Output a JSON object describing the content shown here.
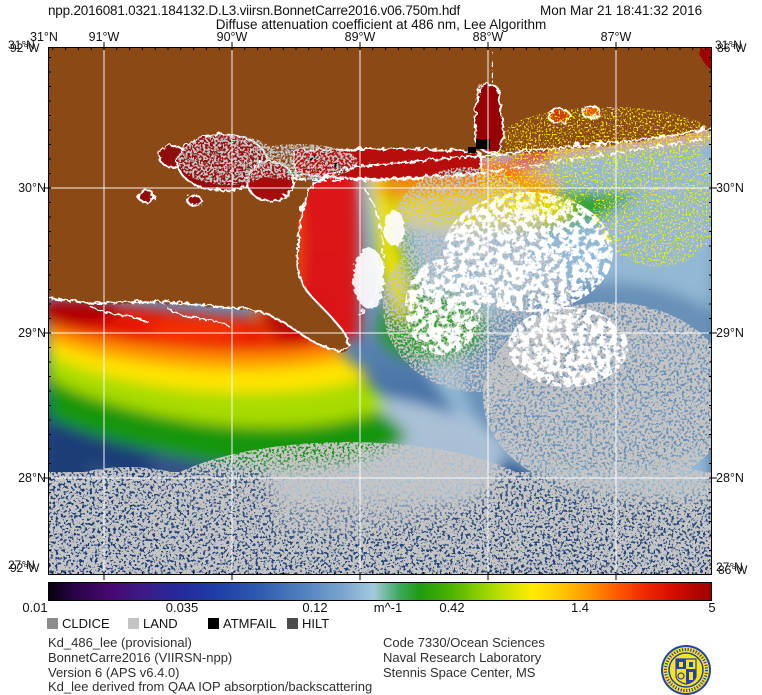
{
  "header": {
    "filename": "npp.2016081.0321.184132.D.L3.viirsn.BonnetCarre2016.v06.750m.hdf",
    "timestamp": "Mon Mar 21 18:41:32 2016",
    "subtitle": "Diffuse attenuation coefficient at 486 nm, Lee Algorithm"
  },
  "map": {
    "top_lat_label": "31°N",
    "lon_ticks": [
      "91°W",
      "90°W",
      "89°W",
      "88°W",
      "87°W"
    ],
    "lat_ticks": [
      "30°N",
      "29°N",
      "28°N"
    ],
    "corner_labels": {
      "top_left": [
        "31°N",
        "92°W"
      ],
      "top_right": [
        "31°N",
        "86°W"
      ],
      "bottom_left": [
        "27°N",
        "92°W"
      ],
      "bottom_right": [
        "27°N",
        "86°W"
      ]
    },
    "colors": {
      "land_brown": "#8b4a16",
      "lake_dark_red": "#8f0a0a",
      "cloud_gray": "#8f8f8f",
      "graticule_white": "#ffffff",
      "deep_water_navy": "#1c3a6e"
    }
  },
  "colorbar": {
    "tick_labels": [
      "0.01",
      "0.035",
      "0.12",
      "0.42",
      "1.4",
      "5"
    ],
    "unit_label": "m^-1",
    "scale": "log",
    "stops": [
      [
        0,
        "#08000f"
      ],
      [
        4,
        "#2a0448"
      ],
      [
        9,
        "#47086e"
      ],
      [
        14,
        "#3d1a86"
      ],
      [
        19,
        "#27289a"
      ],
      [
        25,
        "#1e3ca6"
      ],
      [
        32,
        "#2f5cb0"
      ],
      [
        39,
        "#5585c0"
      ],
      [
        45,
        "#7fa9d2"
      ],
      [
        49,
        "#a4c9de"
      ],
      [
        53,
        "#3aa85a"
      ],
      [
        56,
        "#1f9c10"
      ],
      [
        61,
        "#4fb400"
      ],
      [
        65,
        "#8cd000"
      ],
      [
        69,
        "#c8e200"
      ],
      [
        73,
        "#ffec00"
      ],
      [
        78,
        "#ffc000"
      ],
      [
        82,
        "#ff9000"
      ],
      [
        86,
        "#ff5800"
      ],
      [
        90,
        "#f02800"
      ],
      [
        94,
        "#d80e00"
      ],
      [
        100,
        "#9e0000"
      ]
    ]
  },
  "legend": {
    "items": [
      {
        "label": "CLDICE",
        "color": "#8c8c8c"
      },
      {
        "label": "LAND",
        "color": "#c4c4c4"
      },
      {
        "label": "ATMFAIL",
        "color": "#000000"
      },
      {
        "label": "HILT",
        "color": "#4c4c4c"
      }
    ]
  },
  "footer": {
    "product_lines": [
      "Kd_486_lee (provisional)",
      "BonnetCarre2016 (VIIRSN-npp)",
      "Version 6 (APS v6.4.0)",
      "Kd_lee derived from QAA IOP absorption/backscattering"
    ],
    "org_lines": [
      "Code 7330/Ocean Sciences",
      "Naval Research Laboratory",
      "Stennis Space Center, MS"
    ]
  },
  "logo": {
    "name": "NRL seal",
    "ring_color": "#2244aa",
    "field_color": "#ffe223"
  },
  "chart_data": {
    "type": "heatmap",
    "title": "Diffuse attenuation coefficient at 486 nm, Lee Algorithm",
    "variable": "Kd_486_lee",
    "units": "m^-1",
    "scale": "log",
    "range": [
      0.01,
      5
    ],
    "colorbar_ticks": [
      0.01,
      0.035,
      0.12,
      0.42,
      1.4,
      5
    ],
    "x_axis": {
      "label_type": "longitude",
      "ticks": [
        "91°W",
        "90°W",
        "89°W",
        "88°W",
        "87°W"
      ]
    },
    "y_axis": {
      "label_type": "latitude",
      "ticks": [
        "30°N",
        "29°N",
        "28°N"
      ]
    },
    "mask_flags": [
      "CLDICE",
      "LAND",
      "ATMFAIL",
      "HILT"
    ]
  }
}
